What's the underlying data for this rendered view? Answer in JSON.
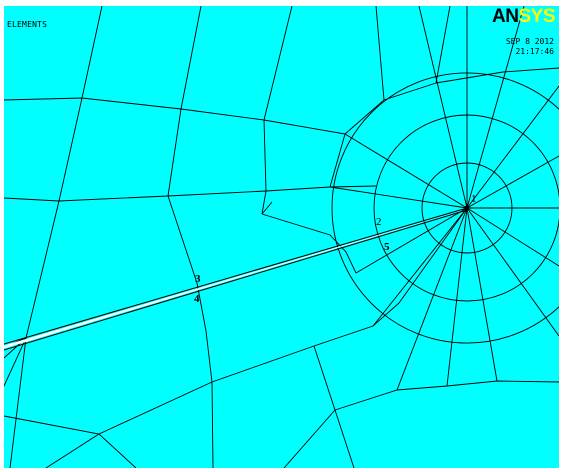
{
  "header": {
    "label": "ELEMENTS"
  },
  "logo": {
    "part_a": "AN",
    "part_b": "SYS",
    "color_a": "#000000",
    "color_b": "#ffff00"
  },
  "timestamp": {
    "date": "SEP  8 2012",
    "time": "21:17:46"
  },
  "nodes": {
    "n1": "1",
    "n2": "2",
    "n3": "3",
    "n4": "4",
    "n5": "5"
  },
  "colors": {
    "background": "#00ffff",
    "mesh_line": "#000000"
  }
}
